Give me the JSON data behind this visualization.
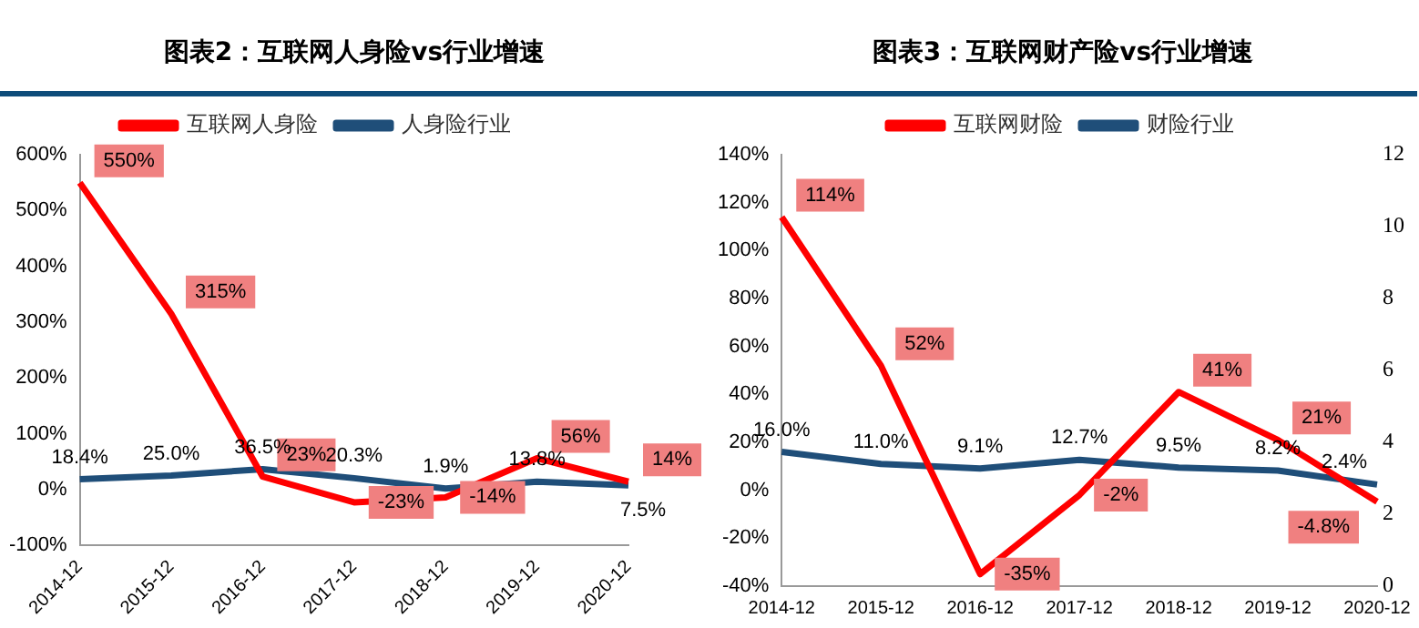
{
  "chart_data": [
    {
      "type": "line",
      "title": "图表2：互联网人身险vs行业增速",
      "categories": [
        "2014-12",
        "2015-12",
        "2016-12",
        "2017-12",
        "2018-12",
        "2019-12",
        "2020-12"
      ],
      "series": [
        {
          "name": "互联网人身险",
          "color": "#ff0000",
          "values": [
            550,
            315,
            23,
            -23,
            -14,
            56,
            14
          ],
          "value_labels": [
            "550%",
            "315%",
            "23%",
            "-23%",
            "-14%",
            "56%",
            "14%"
          ]
        },
        {
          "name": "人身险行业",
          "color": "#1f4e79",
          "values": [
            18.4,
            25.0,
            36.5,
            20.3,
            1.9,
            13.8,
            7.5
          ],
          "value_labels": [
            "18.4%",
            "25.0%",
            "36.5%",
            "20.3%",
            "1.9%",
            "13.8%",
            "7.5%"
          ]
        }
      ],
      "ylim": [
        -100,
        600
      ],
      "yticks": [
        {
          "value": -100,
          "label": "-100%"
        },
        {
          "value": 0,
          "label": "0%"
        },
        {
          "value": 100,
          "label": "100%"
        },
        {
          "value": 200,
          "label": "200%"
        },
        {
          "value": 300,
          "label": "300%"
        },
        {
          "value": 400,
          "label": "400%"
        },
        {
          "value": 500,
          "label": "500%"
        },
        {
          "value": 600,
          "label": "600%"
        }
      ],
      "legend": "top",
      "marker": "none",
      "grid": false
    },
    {
      "type": "line",
      "title": "图表3：互联网财产险vs行业增速",
      "categories": [
        "2014-12",
        "2015-12",
        "2016-12",
        "2017-12",
        "2018-12",
        "2019-12",
        "2020-12"
      ],
      "series": [
        {
          "name": "互联网财险",
          "color": "#ff0000",
          "values": [
            114,
            52,
            -35,
            -2,
            41,
            21,
            -4.8
          ],
          "value_labels": [
            "114%",
            "52%",
            "-35%",
            "-2%",
            "41%",
            "21%",
            "-4.8%"
          ]
        },
        {
          "name": "财险行业",
          "color": "#1f4e79",
          "values": [
            16.0,
            11.0,
            9.1,
            12.7,
            9.5,
            8.2,
            2.4
          ],
          "value_labels": [
            "16.0%",
            "11.0%",
            "9.1%",
            "12.7%",
            "9.5%",
            "8.2%",
            "2.4%"
          ]
        }
      ],
      "ylim": [
        -40,
        140
      ],
      "yticks": [
        {
          "value": -40,
          "label": "-40%"
        },
        {
          "value": -20,
          "label": "-20%"
        },
        {
          "value": 0,
          "label": "0%"
        },
        {
          "value": 20,
          "label": "20%"
        },
        {
          "value": 40,
          "label": "40%"
        },
        {
          "value": 60,
          "label": "60%"
        },
        {
          "value": 80,
          "label": "80%"
        },
        {
          "value": 100,
          "label": "100%"
        },
        {
          "value": 120,
          "label": "120%"
        },
        {
          "value": 140,
          "label": "140%"
        }
      ],
      "y2lim": [
        0,
        12
      ],
      "y2ticks": [
        0,
        2,
        4,
        6,
        8,
        10,
        12
      ],
      "legend": "top",
      "marker": "none",
      "grid": false
    }
  ]
}
